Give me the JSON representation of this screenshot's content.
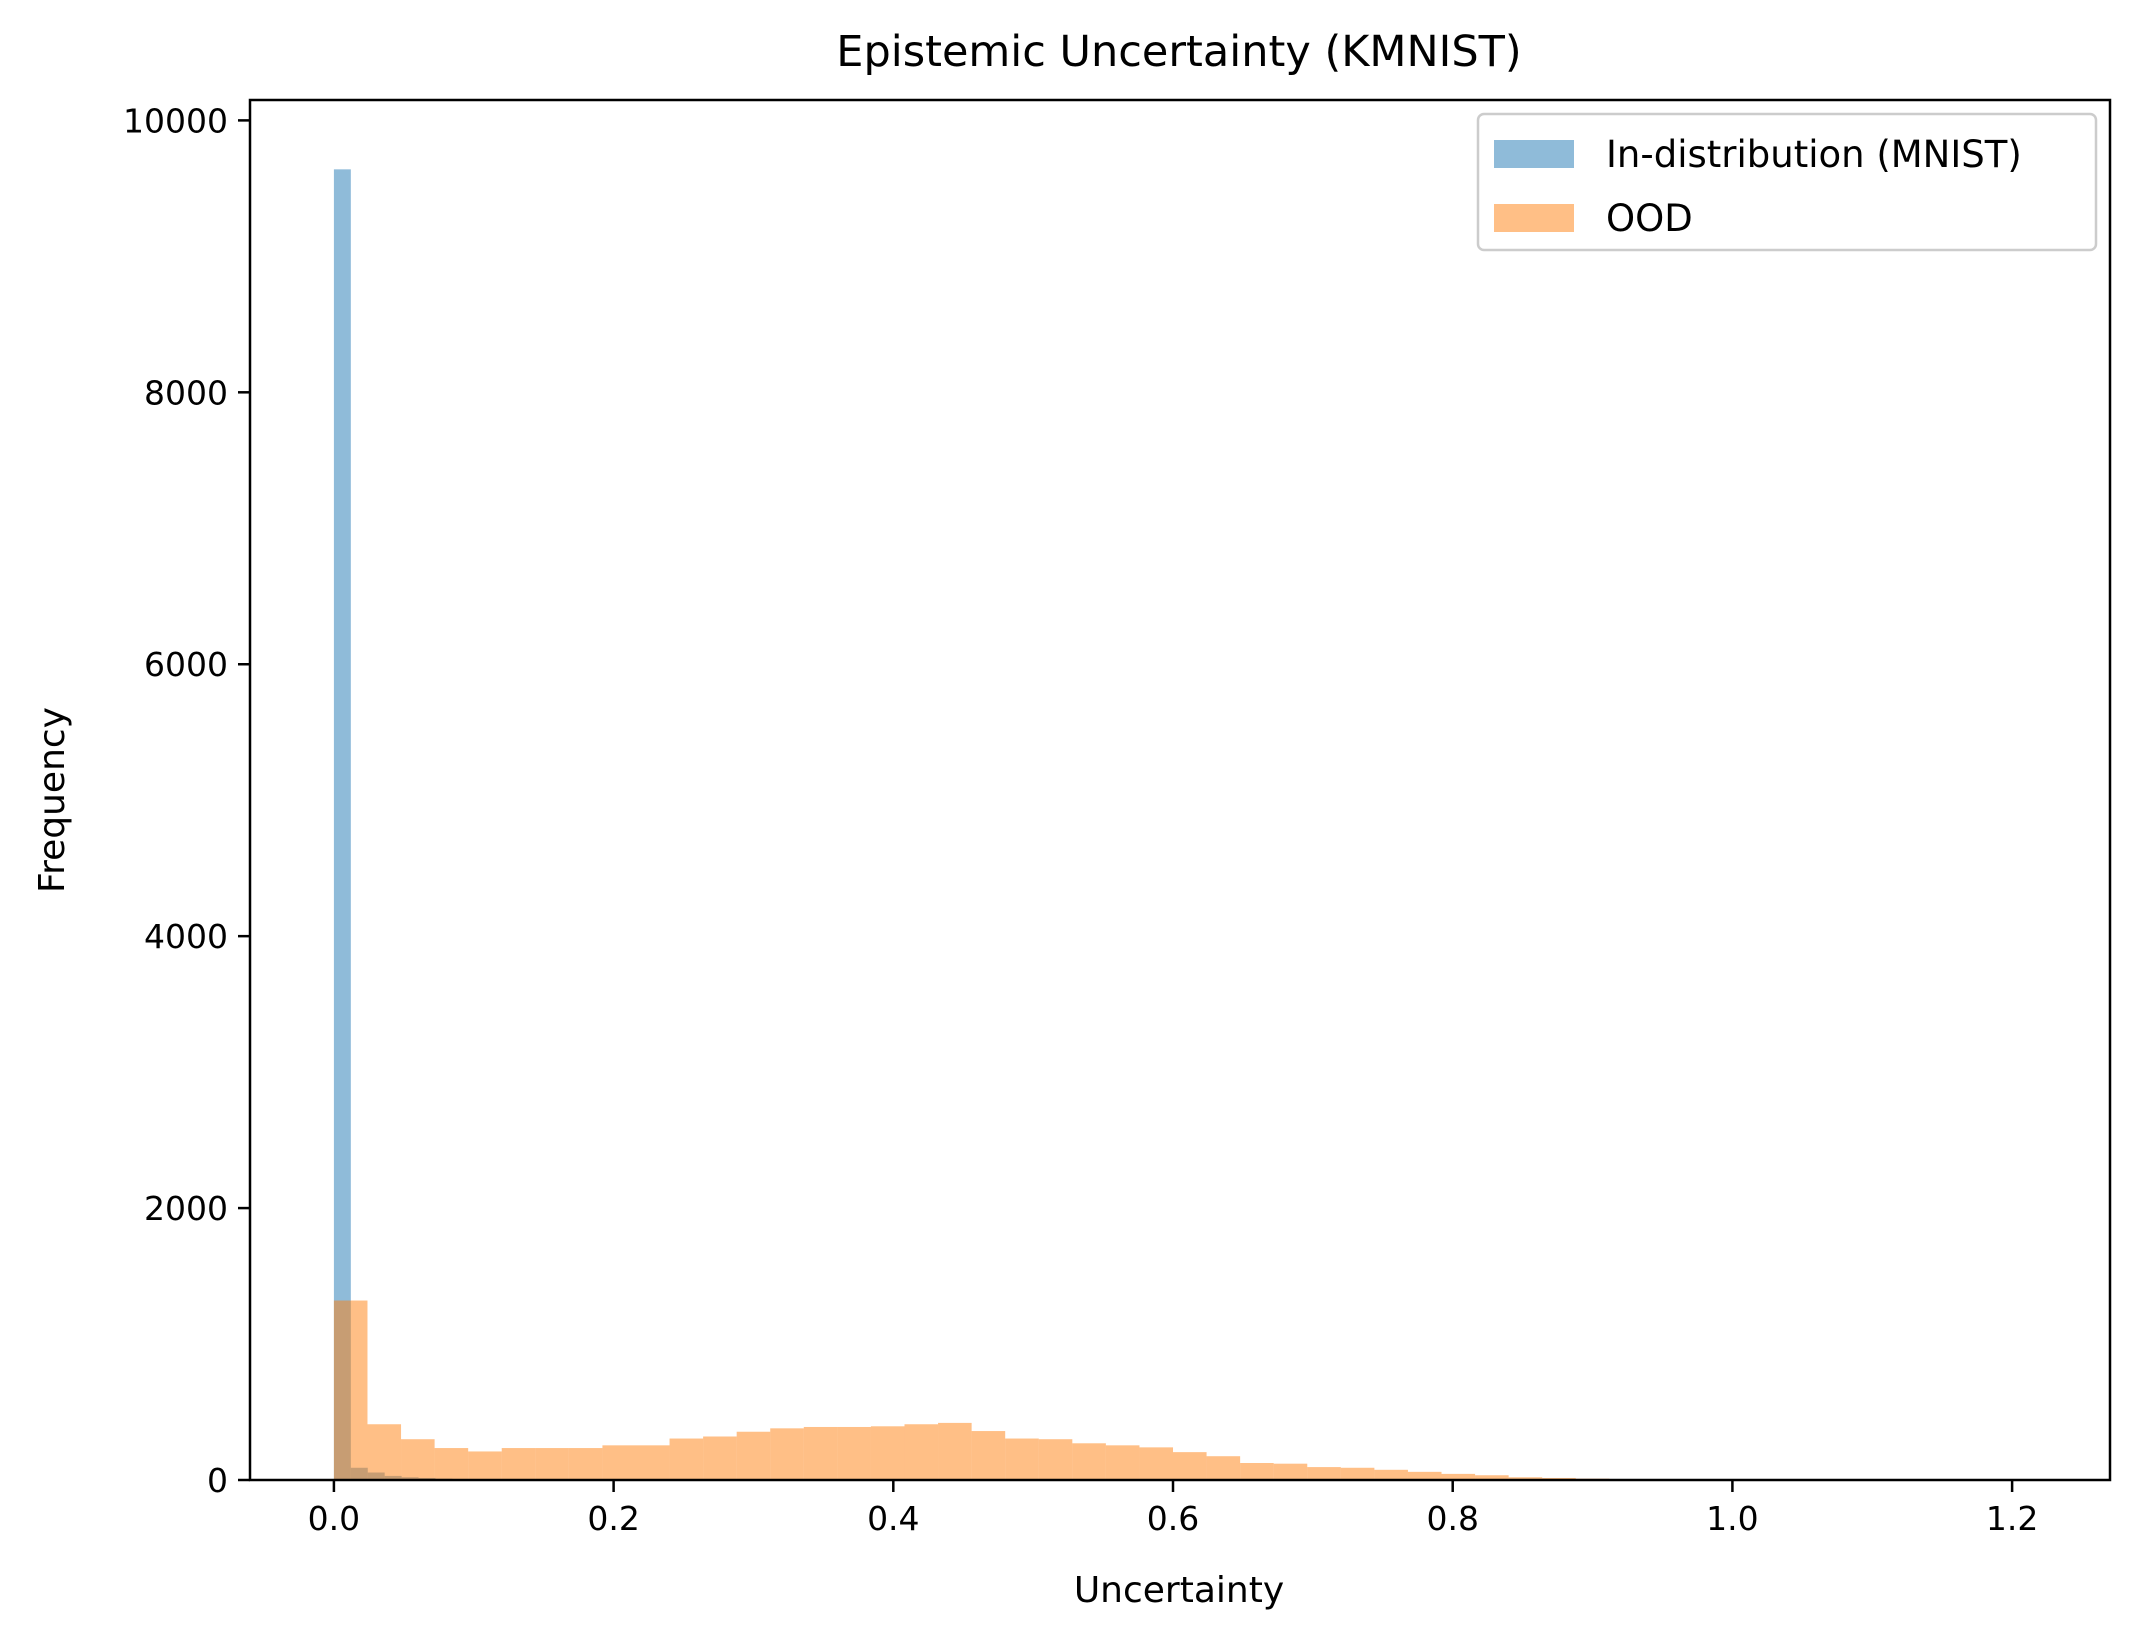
{
  "chart_data": {
    "type": "bar",
    "subtype": "histogram",
    "title": "Epistemic Uncertainty (KMNIST)",
    "xlabel": "Uncertainty",
    "ylabel": "Frequency",
    "xlim": [
      -0.06,
      1.27
    ],
    "ylim": [
      0,
      10150
    ],
    "xticks": [
      0.0,
      0.2,
      0.4,
      0.6,
      0.8,
      1.0,
      1.2
    ],
    "xtick_labels": [
      "0.0",
      "0.2",
      "0.4",
      "0.6",
      "0.8",
      "1.0",
      "1.2"
    ],
    "yticks": [
      0,
      2000,
      4000,
      6000,
      8000,
      10000
    ],
    "ytick_labels": [
      "0",
      "2000",
      "4000",
      "6000",
      "8000",
      "10000"
    ],
    "grid": false,
    "legend_position": "upper right",
    "series": [
      {
        "name": "In-distribution (MNIST)",
        "color": "#1f77b4",
        "alpha": 0.5,
        "bin_edges": [
          0.0,
          0.0121,
          0.0242,
          0.0363,
          0.0484,
          0.0605,
          0.0726,
          0.0847,
          0.0968
        ],
        "counts": [
          9640,
          90,
          55,
          30,
          20,
          15,
          10,
          5
        ]
      },
      {
        "name": "OOD",
        "color": "#ff7f0e",
        "alpha": 0.5,
        "bin_edges": [
          0.0,
          0.024,
          0.048,
          0.072,
          0.096,
          0.12,
          0.144,
          0.168,
          0.192,
          0.216,
          0.24,
          0.264,
          0.288,
          0.312,
          0.336,
          0.36,
          0.384,
          0.408,
          0.432,
          0.456,
          0.48,
          0.504,
          0.528,
          0.552,
          0.576,
          0.6,
          0.624,
          0.648,
          0.672,
          0.696,
          0.72,
          0.744,
          0.768,
          0.792,
          0.816,
          0.84,
          0.864,
          0.888,
          0.912,
          0.936,
          0.96,
          0.984,
          1.008,
          1.032,
          1.056,
          1.08,
          1.104,
          1.128,
          1.152,
          1.176,
          1.2
        ],
        "counts": [
          1320,
          410,
          300,
          235,
          210,
          235,
          235,
          235,
          255,
          255,
          305,
          320,
          355,
          380,
          390,
          390,
          395,
          410,
          420,
          360,
          305,
          300,
          270,
          255,
          240,
          205,
          175,
          125,
          120,
          95,
          90,
          75,
          60,
          45,
          35,
          20,
          15,
          10,
          5,
          5,
          4,
          3,
          2,
          2,
          2,
          1,
          1,
          1,
          1,
          1
        ]
      }
    ]
  }
}
